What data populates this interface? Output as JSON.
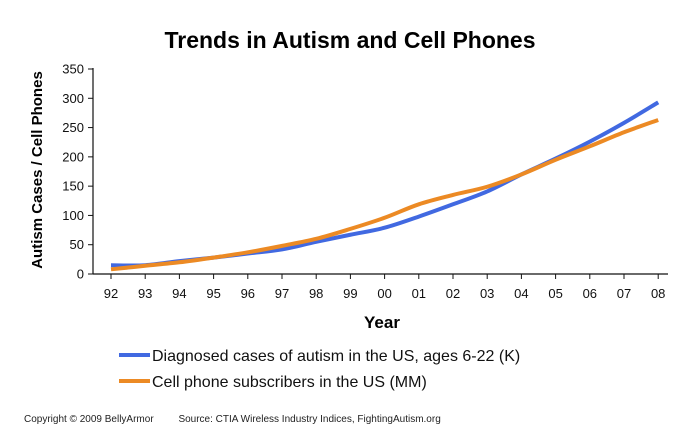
{
  "chart_data": {
    "type": "line",
    "title": "Trends in Autism and Cell Phones",
    "xlabel": "Year",
    "ylabel": "Autism Cases / Cell Phones",
    "ylim": [
      0,
      350
    ],
    "yticks": [
      0,
      50,
      100,
      150,
      200,
      250,
      300,
      350
    ],
    "categories": [
      "92",
      "93",
      "94",
      "95",
      "96",
      "97",
      "98",
      "99",
      "00",
      "01",
      "02",
      "03",
      "04",
      "05",
      "06",
      "07",
      "08"
    ],
    "grid": false,
    "legend_position": "bottom",
    "series": [
      {
        "name": "Diagnosed cases of autism in the US, ages 6-22 (K)",
        "color": "#4169e1",
        "values": [
          15,
          15,
          22,
          28,
          35,
          42,
          55,
          67,
          79,
          98,
          119,
          141,
          170,
          197,
          226,
          258,
          293
        ]
      },
      {
        "name": "Cell phone subscribers in the US (MM)",
        "color": "#ec8a24",
        "values": [
          8,
          14,
          20,
          28,
          37,
          48,
          60,
          77,
          96,
          119,
          135,
          149,
          170,
          195,
          218,
          242,
          263
        ]
      }
    ]
  },
  "footer": {
    "copyright": "Copyright © 2009 BellyArmor",
    "source": "Source: CTIA Wireless Industry Indices, FightingAutism.org"
  }
}
